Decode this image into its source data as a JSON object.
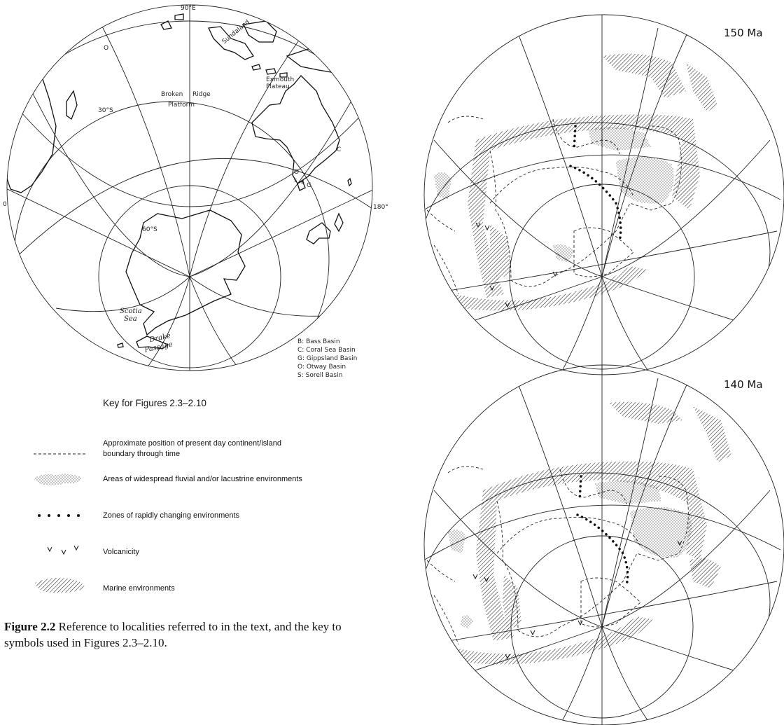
{
  "map1": {
    "labels": {
      "top_lon": "90°E",
      "left_lon": "0",
      "right_lon": "180°",
      "lat30": "30°S",
      "lat60": "60°S",
      "o_top": "O",
      "sundaland": "Sundaland",
      "exmouth": "Exmouth",
      "plateau": "Plateau",
      "broken": "Broken",
      "ridge": "Ridge",
      "platform": "Platform",
      "c": "C",
      "o": "O",
      "s": "S",
      "b": "B",
      "g": "G",
      "scotia": "Scotia",
      "sea": "Sea",
      "drake": "Drake",
      "passage": "Passage"
    },
    "basins": [
      "B: Bass Basin",
      "C: Coral Sea Basin",
      "G: Gippsland Basin",
      "O: Otway Basin",
      "S: Sorell Basin"
    ]
  },
  "key": {
    "title": "Key for Figures 2.3–2.10",
    "items": [
      "Approximate position of present day continent/island boundary through time",
      "Areas of widespread fluvial and/or lacustrine environments",
      "Zones of rapidly changing environments",
      "Volcanicity",
      "Marine environments"
    ]
  },
  "caption": {
    "label": "Figure 2.2",
    "text": "Reference to localities referred to in the text, and the key to symbols used in Figures 2.3–2.10."
  },
  "map2": {
    "age": "150 Ma"
  },
  "map3": {
    "age": "140 Ma"
  }
}
